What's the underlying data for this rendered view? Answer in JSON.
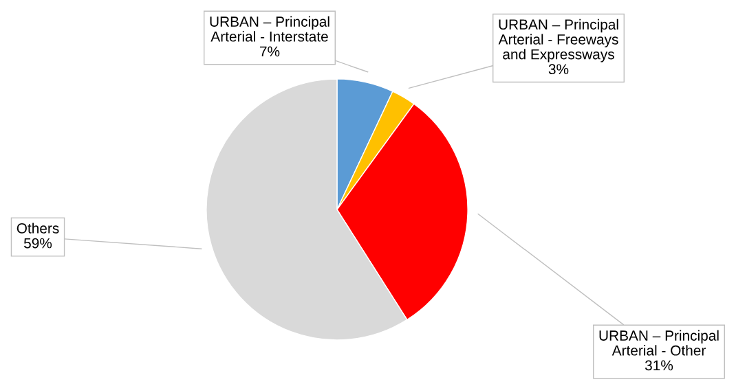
{
  "chart_data": {
    "type": "pie",
    "categories": [
      "URBAN – Principal Arterial - Interstate",
      "URBAN – Principal Arterial - Freeways and Expressways",
      "URBAN – Principal Arterial - Other",
      "Others"
    ],
    "values": [
      7,
      3,
      31,
      59
    ],
    "colors": [
      "#5b9bd5",
      "#ffc000",
      "#ff0000",
      "#d9d9d9"
    ],
    "value_labels": [
      "7%",
      "3%",
      "31%",
      "59%"
    ]
  }
}
